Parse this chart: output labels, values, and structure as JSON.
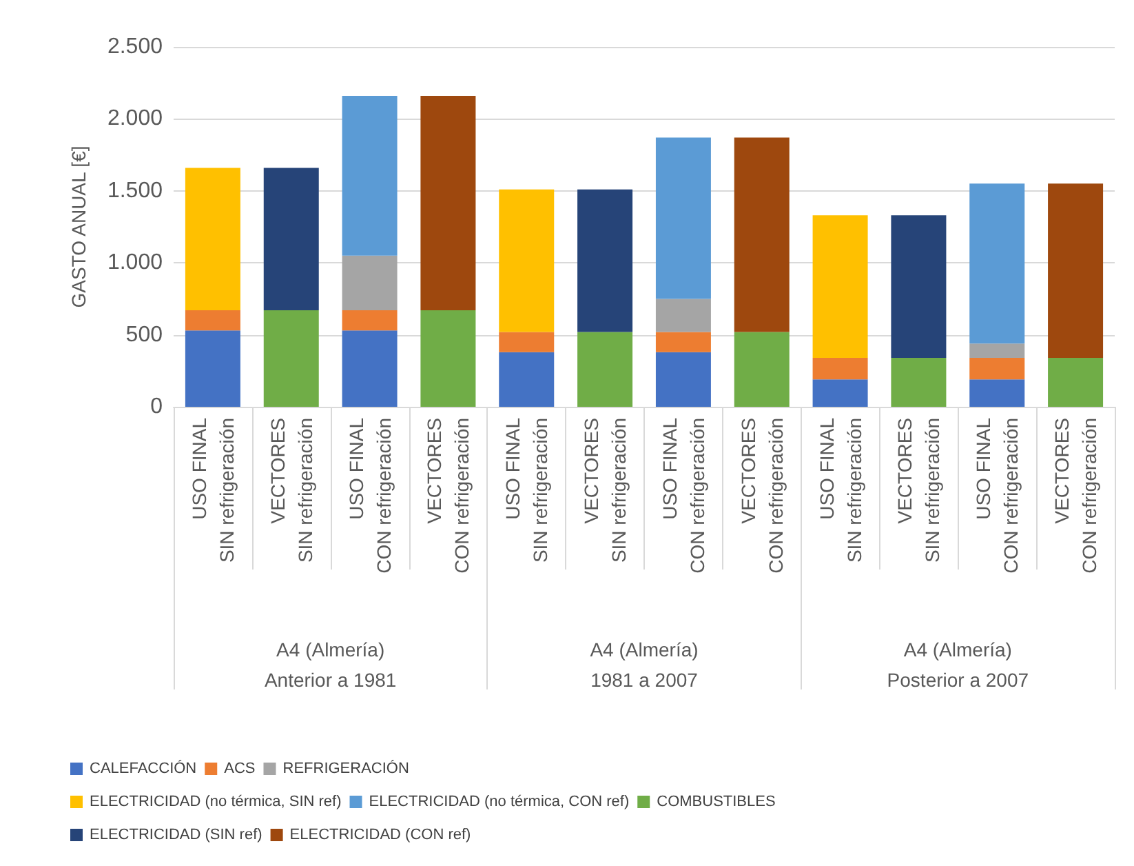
{
  "chart_data": {
    "type": "bar",
    "stacked": true,
    "ylabel": "GASTO ANUAL [€]",
    "ylim": [
      0,
      2500
    ],
    "yticks": [
      {
        "value": 0,
        "label": "0"
      },
      {
        "value": 500,
        "label": "500"
      },
      {
        "value": 1000,
        "label": "1.000"
      },
      {
        "value": 1500,
        "label": "1.500"
      },
      {
        "value": 2000,
        "label": "2.000"
      },
      {
        "value": 2500,
        "label": "2.500"
      }
    ],
    "grid": "y",
    "legend": "bottom",
    "categories": [
      "USO FINAL\nSIN refrigeración",
      "VECTORES\nSIN refrigeración",
      "USO FINAL\nCON refrigeración",
      "VECTORES\nCON refrigeración",
      "USO FINAL\nSIN refrigeración",
      "VECTORES\nSIN refrigeración",
      "USO FINAL\nCON refrigeración",
      "VECTORES\nCON refrigeración",
      "USO FINAL\nSIN refrigeración",
      "VECTORES\nSIN refrigeración",
      "USO FINAL\nCON refrigeración",
      "VECTORES\nCON refrigeración"
    ],
    "annotations": [
      "A4 (Almería)\nAnterior a 1981",
      "A4 (Almería)\n1981 a 2007",
      "A4 (Almería)\nPosterior a 2007"
    ],
    "series": [
      {
        "name": "CALEFACCIÓN",
        "color": "#4472c4",
        "values": [
          530,
          null,
          530,
          null,
          380,
          null,
          380,
          null,
          190,
          null,
          190,
          null
        ]
      },
      {
        "name": "ACS",
        "color": "#ed7d31",
        "values": [
          140,
          null,
          140,
          null,
          140,
          null,
          140,
          null,
          150,
          null,
          150,
          null
        ]
      },
      {
        "name": "REFRIGERACIÓN",
        "color": "#a5a5a5",
        "values": [
          null,
          null,
          380,
          null,
          null,
          null,
          230,
          null,
          null,
          null,
          100,
          null
        ]
      },
      {
        "name": "ELECTRICIDAD (no térmica, SIN ref)",
        "color": "#ffc000",
        "values": [
          990,
          null,
          null,
          null,
          990,
          null,
          null,
          null,
          990,
          null,
          null,
          null
        ]
      },
      {
        "name": "ELECTRICIDAD (no térmica, CON ref)",
        "color": "#5b9bd5",
        "values": [
          null,
          null,
          1110,
          null,
          null,
          null,
          1120,
          null,
          null,
          null,
          1110,
          null
        ]
      },
      {
        "name": "COMBUSTIBLES",
        "color": "#70ad47",
        "values": [
          null,
          670,
          null,
          670,
          null,
          520,
          null,
          520,
          null,
          340,
          null,
          340
        ]
      },
      {
        "name": "ELECTRICIDAD (SIN ref)",
        "color": "#264478",
        "values": [
          null,
          990,
          null,
          null,
          null,
          990,
          null,
          null,
          null,
          990,
          null,
          null
        ]
      },
      {
        "name": "ELECTRICIDAD (CON ref)",
        "color": "#9e480e",
        "values": [
          null,
          null,
          null,
          1490,
          null,
          null,
          null,
          1350,
          null,
          null,
          null,
          1210
        ]
      }
    ]
  }
}
